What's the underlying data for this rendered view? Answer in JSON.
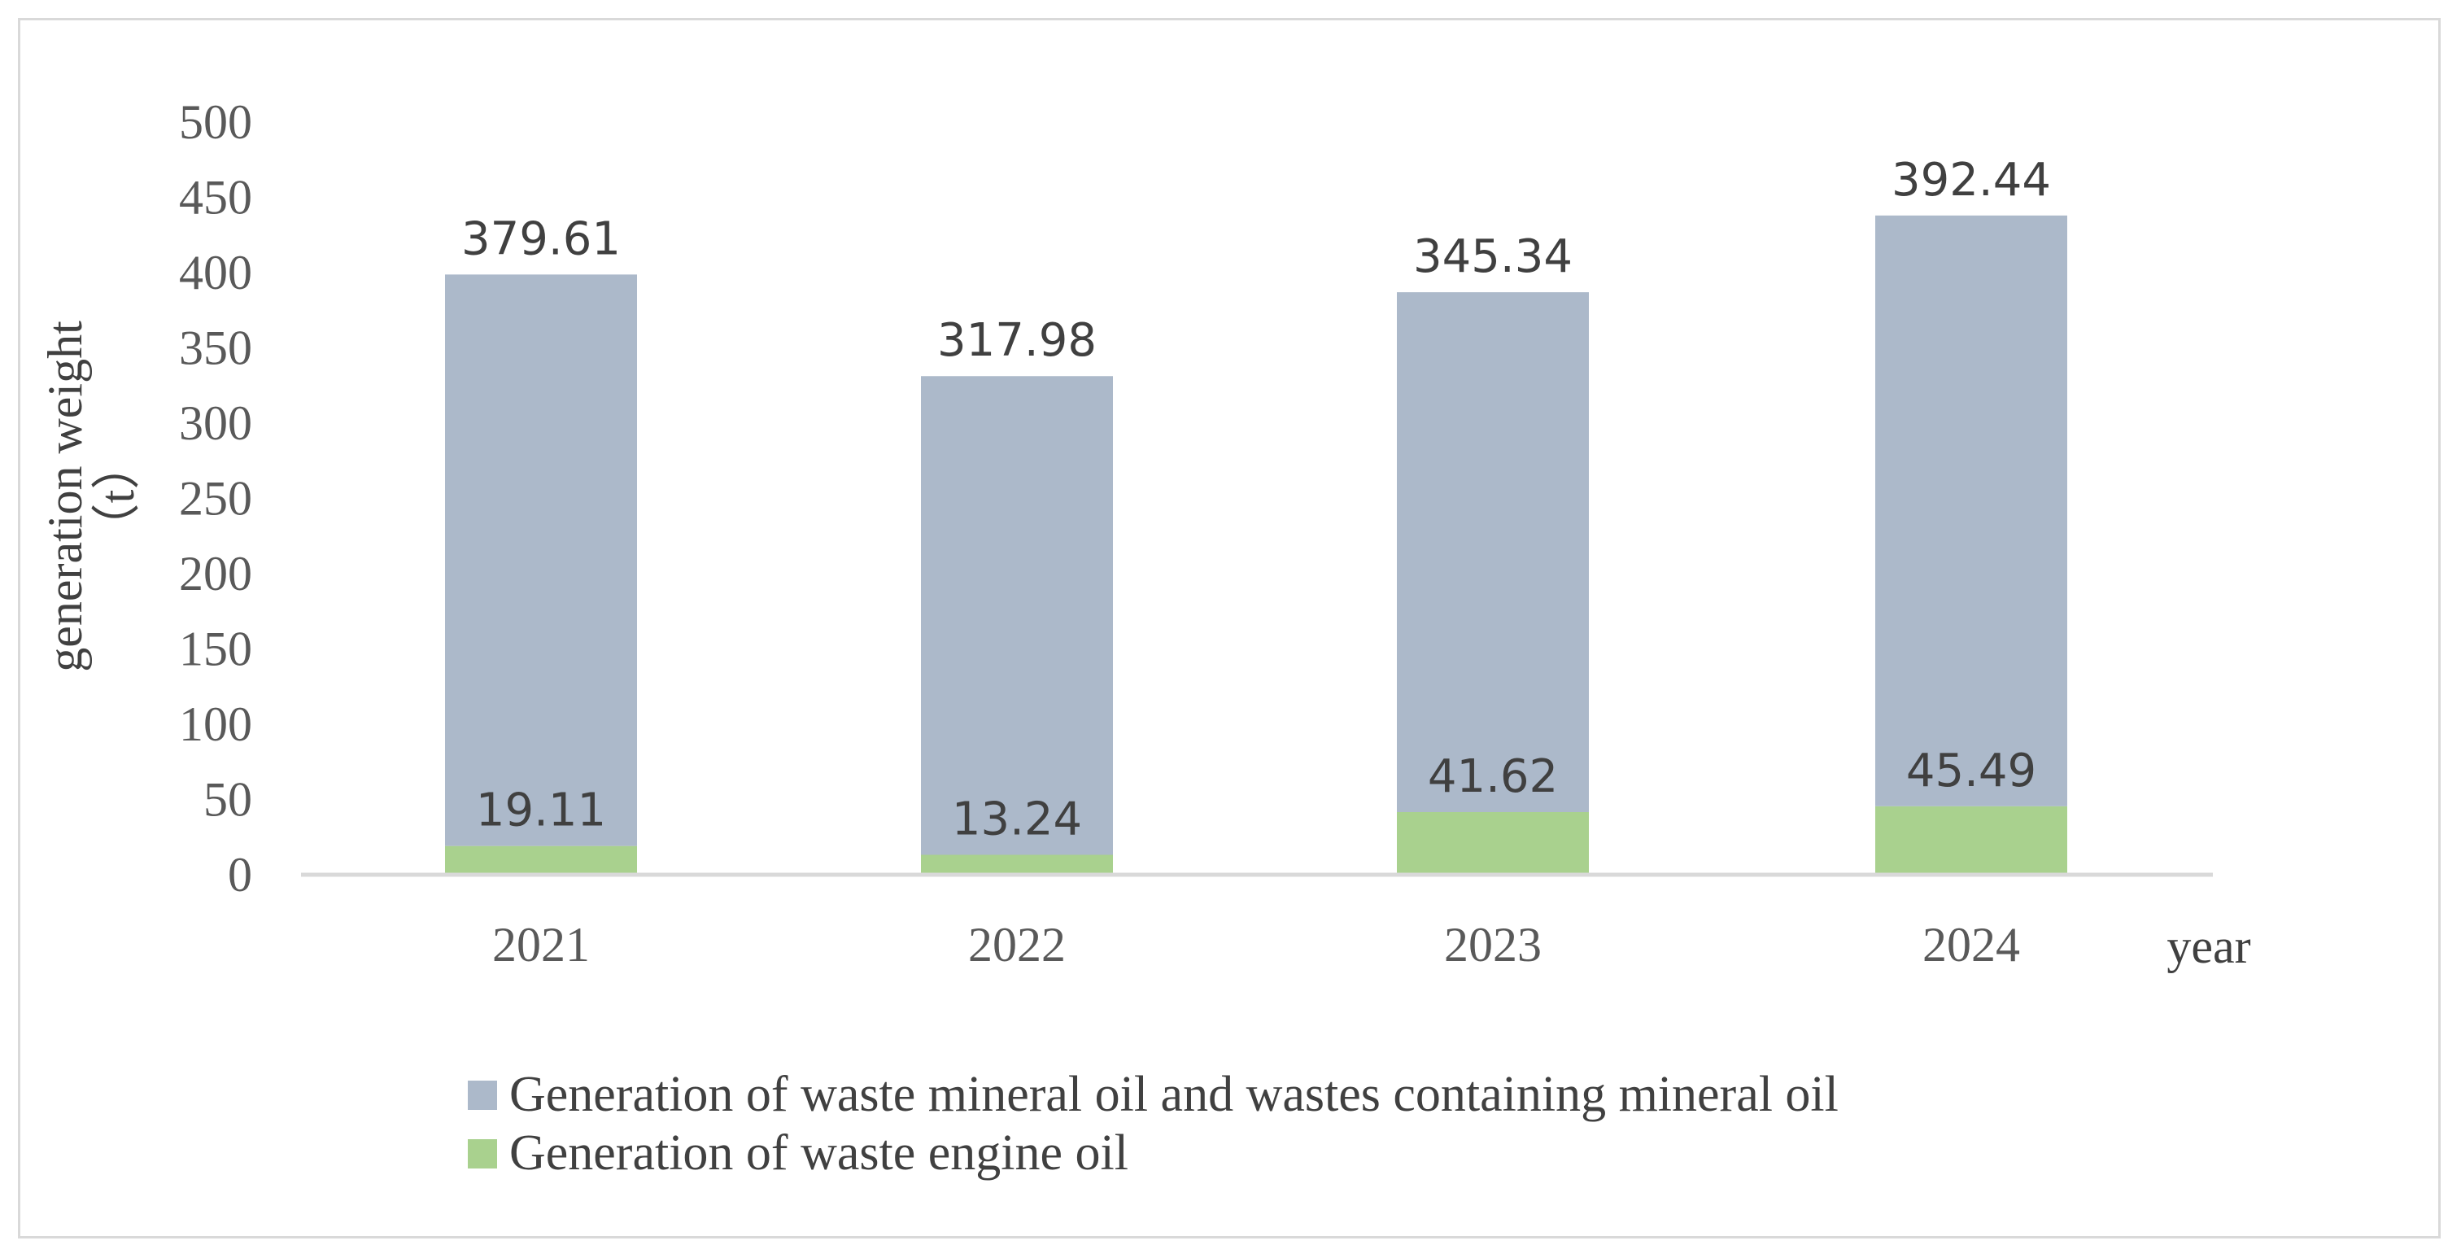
{
  "chart_data": {
    "type": "bar",
    "categories": [
      "2021",
      "2022",
      "2023",
      "2024"
    ],
    "series": [
      {
        "name": "Generation of waste mineral oil and wastes containing mineral oil",
        "values": [
          379.61,
          317.98,
          345.34,
          392.44
        ],
        "color": "#acb9ca"
      },
      {
        "name": "Generation of waste engine oil",
        "values": [
          19.11,
          13.24,
          41.62,
          45.49
        ],
        "color": "#a9d18e"
      }
    ],
    "xlabel": "year",
    "ylabel": "generation weight",
    "ylabel_unit": "（t）",
    "ylim": [
      0,
      500
    ],
    "yticks": [
      0,
      50,
      100,
      150,
      200,
      250,
      300,
      350,
      400,
      450,
      500
    ],
    "stacked": true,
    "legend_position": "bottom",
    "grid": false
  }
}
